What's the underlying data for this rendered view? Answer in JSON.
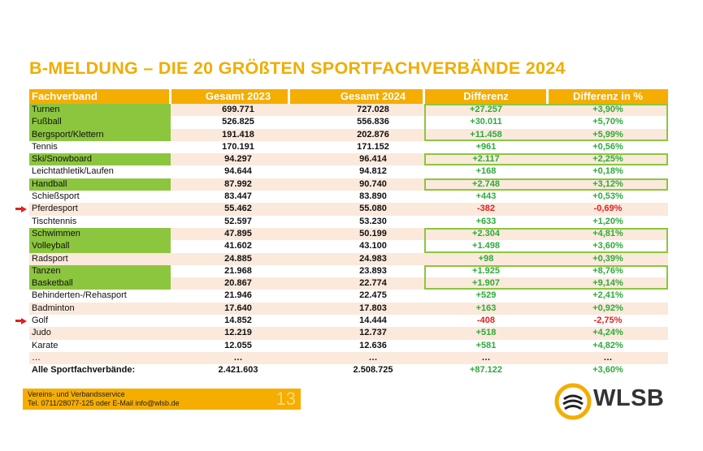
{
  "title": "B-MELDUNG – DIE 20 GRÖßTEN SPORTFACHVERBÄNDE 2024",
  "table": {
    "headers": [
      "Fachverband",
      "Gesamt 2023",
      "Gesamt 2024",
      "Differenz",
      "Differenz in %"
    ],
    "rows": [
      {
        "name": "Turnen",
        "y2023": "699.771",
        "y2024": "727.028",
        "diff": "+27.257",
        "pct": "+3,90%",
        "highlight": true,
        "negative": false,
        "arrow": false
      },
      {
        "name": "Fußball",
        "y2023": "526.825",
        "y2024": "556.836",
        "diff": "+30.011",
        "pct": "+5,70%",
        "highlight": true,
        "negative": false,
        "arrow": false
      },
      {
        "name": "Bergsport/Klettern",
        "y2023": "191.418",
        "y2024": "202.876",
        "diff": "+11.458",
        "pct": "+5,99%",
        "highlight": true,
        "negative": false,
        "arrow": false
      },
      {
        "name": "Tennis",
        "y2023": "170.191",
        "y2024": "171.152",
        "diff": "+961",
        "pct": "+0,56%",
        "highlight": false,
        "negative": false,
        "arrow": false
      },
      {
        "name": "Ski/Snowboard",
        "y2023": "94.297",
        "y2024": "96.414",
        "diff": "+2.117",
        "pct": "+2,25%",
        "highlight": true,
        "negative": false,
        "arrow": false
      },
      {
        "name": "Leichtathletik/Laufen",
        "y2023": "94.644",
        "y2024": "94.812",
        "diff": "+168",
        "pct": "+0,18%",
        "highlight": false,
        "negative": false,
        "arrow": false
      },
      {
        "name": "Handball",
        "y2023": "87.992",
        "y2024": "90.740",
        "diff": "+2.748",
        "pct": "+3,12%",
        "highlight": true,
        "negative": false,
        "arrow": false
      },
      {
        "name": "Schießsport",
        "y2023": "83.447",
        "y2024": "83.890",
        "diff": "+443",
        "pct": "+0,53%",
        "highlight": false,
        "negative": false,
        "arrow": false
      },
      {
        "name": "Pferdesport",
        "y2023": "55.462",
        "y2024": "55.080",
        "diff": "-382",
        "pct": "-0,69%",
        "highlight": false,
        "negative": true,
        "arrow": true
      },
      {
        "name": "Tischtennis",
        "y2023": "52.597",
        "y2024": "53.230",
        "diff": "+633",
        "pct": "+1,20%",
        "highlight": false,
        "negative": false,
        "arrow": false
      },
      {
        "name": "Schwimmen",
        "y2023": "47.895",
        "y2024": "50.199",
        "diff": "+2.304",
        "pct": "+4,81%",
        "highlight": true,
        "negative": false,
        "arrow": false
      },
      {
        "name": "Volleyball",
        "y2023": "41.602",
        "y2024": "43.100",
        "diff": "+1.498",
        "pct": "+3,60%",
        "highlight": true,
        "negative": false,
        "arrow": false
      },
      {
        "name": "Radsport",
        "y2023": "24.885",
        "y2024": "24.983",
        "diff": "+98",
        "pct": "+0,39%",
        "highlight": false,
        "negative": false,
        "arrow": false
      },
      {
        "name": "Tanzen",
        "y2023": "21.968",
        "y2024": "23.893",
        "diff": "+1.925",
        "pct": "+8,76%",
        "highlight": true,
        "negative": false,
        "arrow": false
      },
      {
        "name": "Basketball",
        "y2023": "20.867",
        "y2024": "22.774",
        "diff": "+1.907",
        "pct": "+9,14%",
        "highlight": true,
        "negative": false,
        "arrow": false
      },
      {
        "name": "Behinderten-/Rehasport",
        "y2023": "21.946",
        "y2024": "22.475",
        "diff": "+529",
        "pct": "+2,41%",
        "highlight": false,
        "negative": false,
        "arrow": false
      },
      {
        "name": "Badminton",
        "y2023": "17.640",
        "y2024": "17.803",
        "diff": "+163",
        "pct": "+0,92%",
        "highlight": false,
        "negative": false,
        "arrow": false
      },
      {
        "name": "Golf",
        "y2023": "14.852",
        "y2024": "14.444",
        "diff": "-408",
        "pct": "-2,75%",
        "highlight": false,
        "negative": true,
        "arrow": true
      },
      {
        "name": "Judo",
        "y2023": "12.219",
        "y2024": "12.737",
        "diff": "+518",
        "pct": "+4,24%",
        "highlight": false,
        "negative": false,
        "arrow": false
      },
      {
        "name": "Karate",
        "y2023": "12.055",
        "y2024": "12.636",
        "diff": "+581",
        "pct": "+4,82%",
        "highlight": false,
        "negative": false,
        "arrow": false
      },
      {
        "name": "…",
        "y2023": "…",
        "y2024": "…",
        "diff": "…",
        "pct": "…",
        "highlight": false,
        "negative": false,
        "arrow": false
      }
    ],
    "total": {
      "name": "Alle Sportfachverbände:",
      "y2023": "2.421.603",
      "y2024": "2.508.725",
      "diff": "+87.122",
      "pct": "+3,60%"
    }
  },
  "footer": {
    "line1": "Vereins- und Verbandsservice",
    "line2": "Tel. 0711/28077-125 oder E-Mail info@wlsb.de",
    "page": "13"
  },
  "logo": {
    "text": "WLSB"
  },
  "colors": {
    "accent": "#f5ad00",
    "highlight": "#8cc63f",
    "positive": "#2eaa3a",
    "negative": "#e32020",
    "alt_row": "#fbe9dc"
  }
}
